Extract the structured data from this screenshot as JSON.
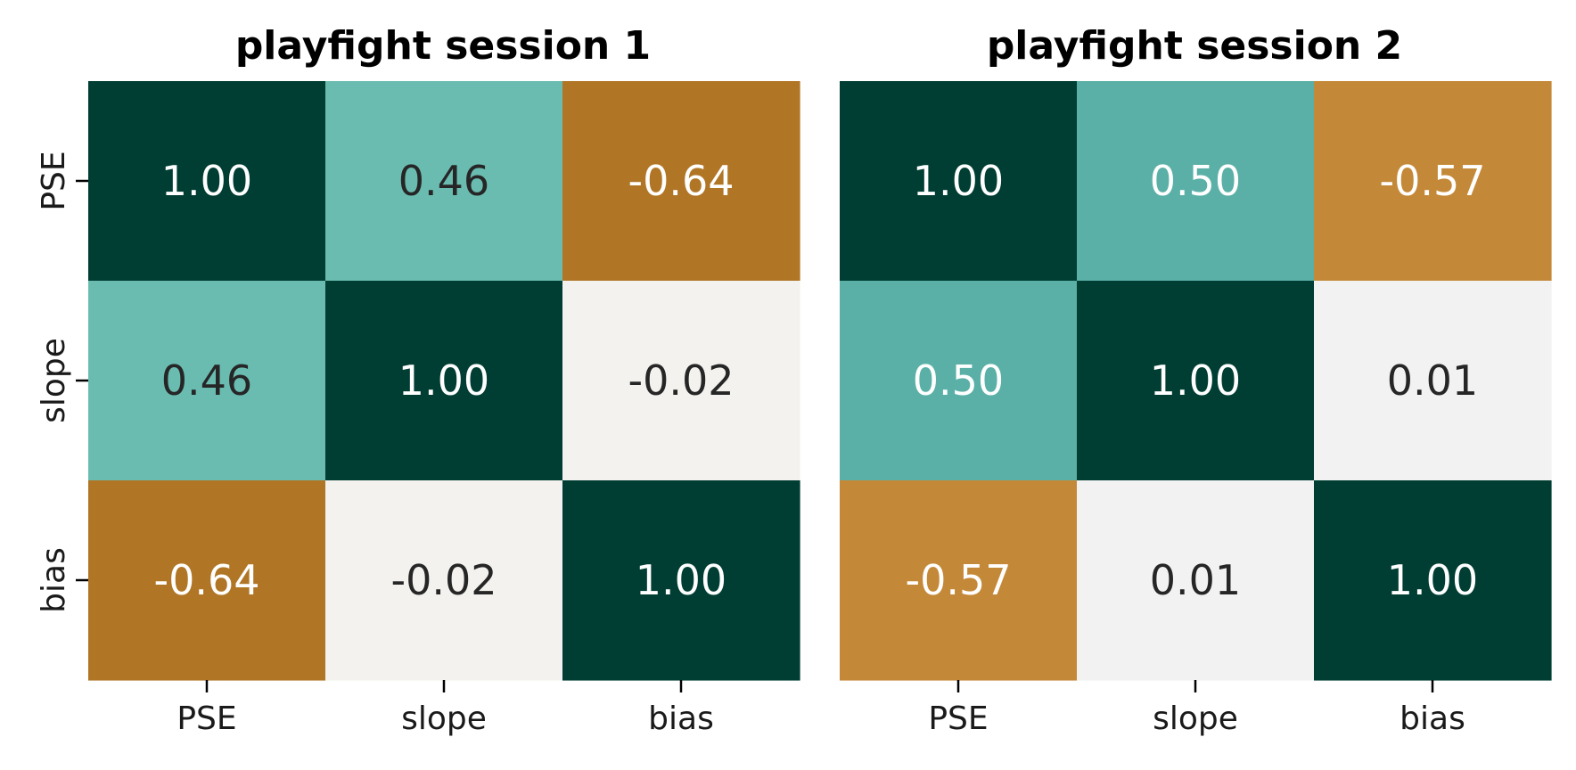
{
  "chart_data": [
    {
      "type": "heatmap",
      "title": "playfight session 1",
      "x_labels": [
        "PSE",
        "slope",
        "bias"
      ],
      "y_labels": [
        "PSE",
        "slope",
        "bias"
      ],
      "values": [
        [
          1.0,
          0.46,
          -0.64
        ],
        [
          0.46,
          1.0,
          -0.02
        ],
        [
          -0.64,
          -0.02,
          1.0
        ]
      ],
      "value_labels": [
        [
          "1.00",
          "0.46",
          "-0.64"
        ],
        [
          "0.46",
          "1.00",
          "-0.02"
        ],
        [
          "-0.64",
          "-0.02",
          "1.00"
        ]
      ],
      "cell_colors": [
        [
          "#003d33",
          "#6abcb1",
          "#b07626"
        ],
        [
          "#6abcb1",
          "#003d33",
          "#f3f2ee"
        ],
        [
          "#b07626",
          "#f3f2ee",
          "#003d33"
        ]
      ],
      "text_colors": [
        [
          "#ffffff",
          "#262626",
          "#ffffff"
        ],
        [
          "#262626",
          "#ffffff",
          "#262626"
        ],
        [
          "#ffffff",
          "#262626",
          "#ffffff"
        ]
      ],
      "colorbar": false
    },
    {
      "type": "heatmap",
      "title": "playfight session 2",
      "x_labels": [
        "PSE",
        "slope",
        "bias"
      ],
      "y_labels": [
        "PSE",
        "slope",
        "bias"
      ],
      "values": [
        [
          1.0,
          0.5,
          -0.57
        ],
        [
          0.5,
          1.0,
          0.01
        ],
        [
          -0.57,
          0.01,
          1.0
        ]
      ],
      "value_labels": [
        [
          "1.00",
          "0.50",
          "-0.57"
        ],
        [
          "0.50",
          "1.00",
          "0.01"
        ],
        [
          "-0.57",
          "0.01",
          "1.00"
        ]
      ],
      "cell_colors": [
        [
          "#003d33",
          "#5ab0a7",
          "#c48938"
        ],
        [
          "#5ab0a7",
          "#003d33",
          "#f1f2f1"
        ],
        [
          "#c48938",
          "#f1f2f1",
          "#003d33"
        ]
      ],
      "text_colors": [
        [
          "#ffffff",
          "#ffffff",
          "#ffffff"
        ],
        [
          "#ffffff",
          "#ffffff",
          "#262626"
        ],
        [
          "#ffffff",
          "#262626",
          "#ffffff"
        ]
      ],
      "colorbar": false
    }
  ]
}
